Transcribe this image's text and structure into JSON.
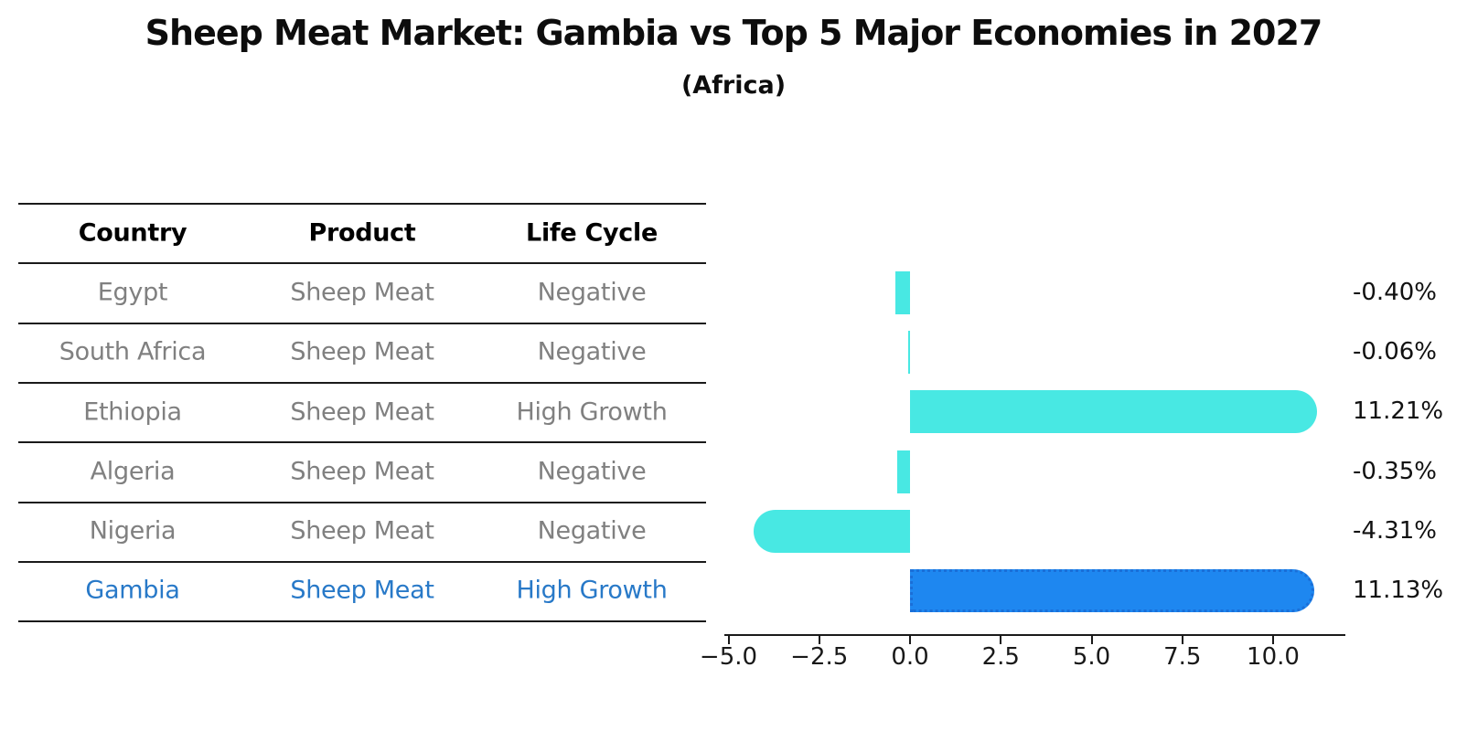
{
  "header": {
    "title": "Sheep Meat Market: Gambia vs Top 5 Major Economies in 2027",
    "subtitle": "(Africa)"
  },
  "table": {
    "columns": [
      "Country",
      "Product",
      "Life Cycle"
    ],
    "rows": [
      {
        "country": "Egypt",
        "product": "Sheep Meat",
        "life_cycle": "Negative",
        "highlight": false
      },
      {
        "country": "South Africa",
        "product": "Sheep Meat",
        "life_cycle": "Negative",
        "highlight": false
      },
      {
        "country": "Ethiopia",
        "product": "Sheep Meat",
        "life_cycle": "High Growth",
        "highlight": false
      },
      {
        "country": "Algeria",
        "product": "Sheep Meat",
        "life_cycle": "Negative",
        "highlight": false
      },
      {
        "country": "Nigeria",
        "product": "Sheep Meat",
        "life_cycle": "Negative",
        "highlight": false
      },
      {
        "country": "Gambia",
        "product": "Sheep Meat",
        "life_cycle": "High Growth",
        "highlight": true
      }
    ]
  },
  "chart_data": {
    "type": "bar",
    "orientation": "horizontal",
    "title": "Sheep Meat Market: Gambia vs Top 5 Major Economies in 2027",
    "subtitle": "(Africa)",
    "categories": [
      "Egypt",
      "South Africa",
      "Ethiopia",
      "Algeria",
      "Nigeria",
      "Gambia"
    ],
    "values": [
      -0.4,
      -0.06,
      11.21,
      -0.35,
      -4.31,
      11.13
    ],
    "value_labels": [
      "-0.40%",
      "-0.06%",
      "11.21%",
      "-0.35%",
      "-4.31%",
      "11.13%"
    ],
    "highlight_category": "Gambia",
    "xlabel": "",
    "ylabel": "",
    "xlim": [
      -5.09,
      11.99
    ],
    "x_ticks": [
      -5.0,
      -2.5,
      0.0,
      2.5,
      5.0,
      7.5,
      10.0
    ],
    "x_tick_labels": [
      "−5.0",
      "−2.5",
      "0.0",
      "2.5",
      "5.0",
      "7.5",
      "10.0"
    ],
    "grid": false,
    "legend": false,
    "colors": {
      "bar": "#48e8e3",
      "highlight_bar": "#1e87f0",
      "highlight_bar_border": "#1a6fd8",
      "highlight_text": "#2879c8",
      "row_text": "#808080",
      "header_text": "#000000",
      "axis": "#1a1a1a"
    }
  }
}
